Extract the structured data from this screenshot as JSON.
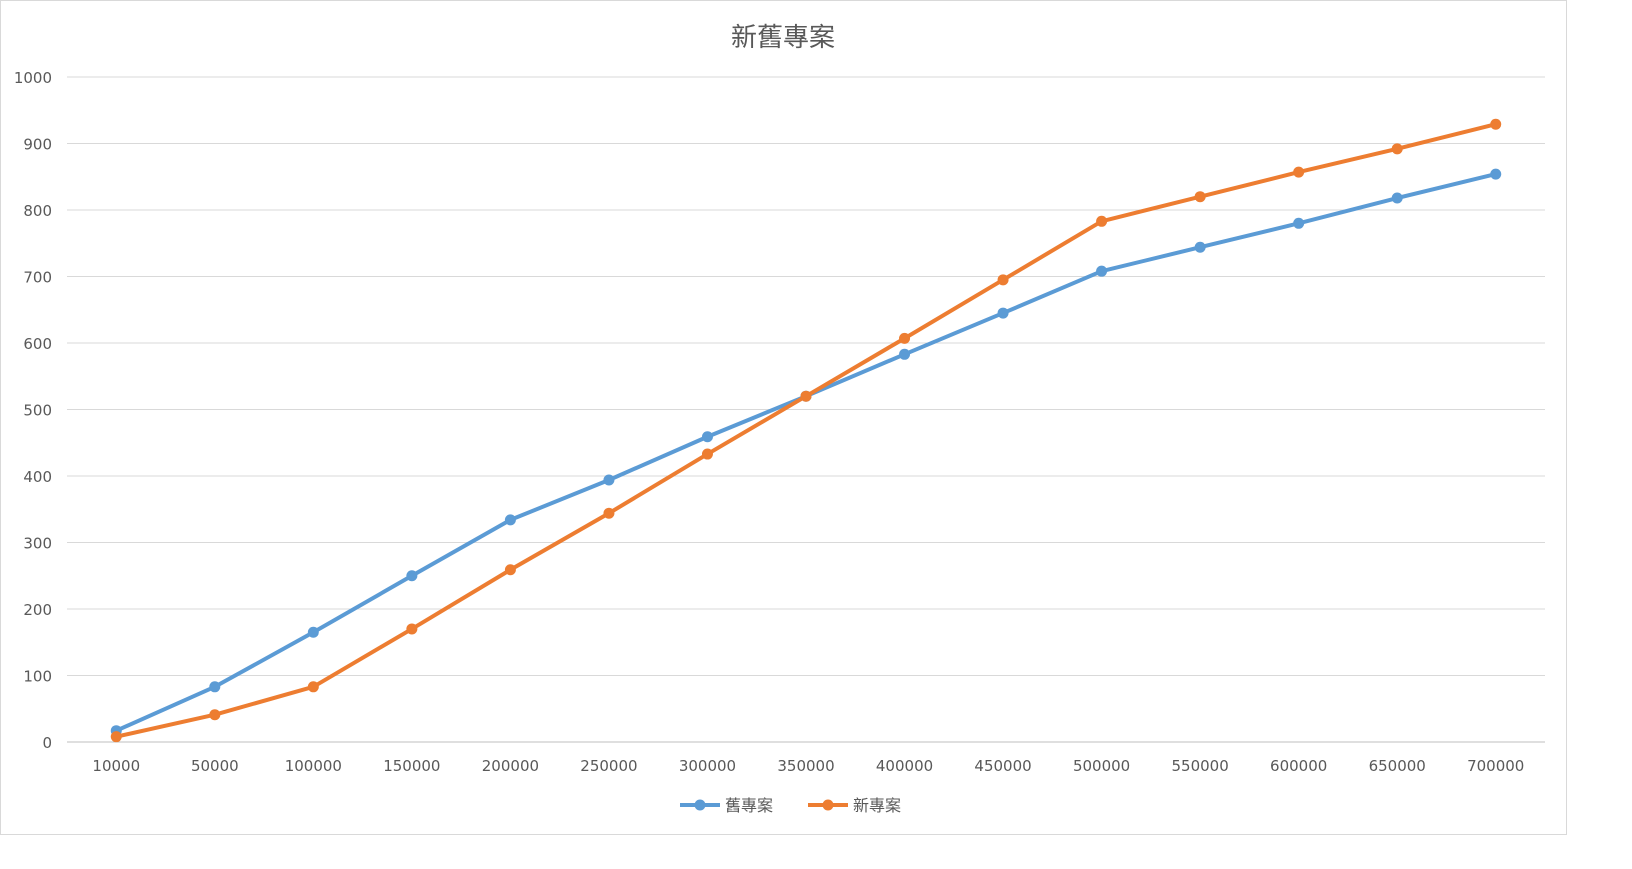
{
  "chart_data": {
    "type": "line",
    "title": "新舊專案",
    "xlabel": "",
    "ylabel": "",
    "categories": [
      "10000",
      "50000",
      "100000",
      "150000",
      "200000",
      "250000",
      "300000",
      "350000",
      "400000",
      "450000",
      "500000",
      "550000",
      "600000",
      "650000",
      "700000"
    ],
    "ylim": [
      0,
      1000
    ],
    "yticks": [
      0,
      100,
      200,
      300,
      400,
      500,
      600,
      700,
      800,
      900,
      1000
    ],
    "grid": true,
    "legend_position": "bottom",
    "series": [
      {
        "name": "舊專案",
        "color": "#5B9BD5",
        "values": [
          17,
          83,
          165,
          250,
          334,
          394,
          459,
          520,
          583,
          645,
          708,
          744,
          780,
          818,
          854
        ]
      },
      {
        "name": "新專案",
        "color": "#ED7D31",
        "values": [
          8,
          41,
          83,
          170,
          259,
          344,
          433,
          520,
          607,
          695,
          783,
          820,
          857,
          892,
          929
        ]
      }
    ]
  }
}
